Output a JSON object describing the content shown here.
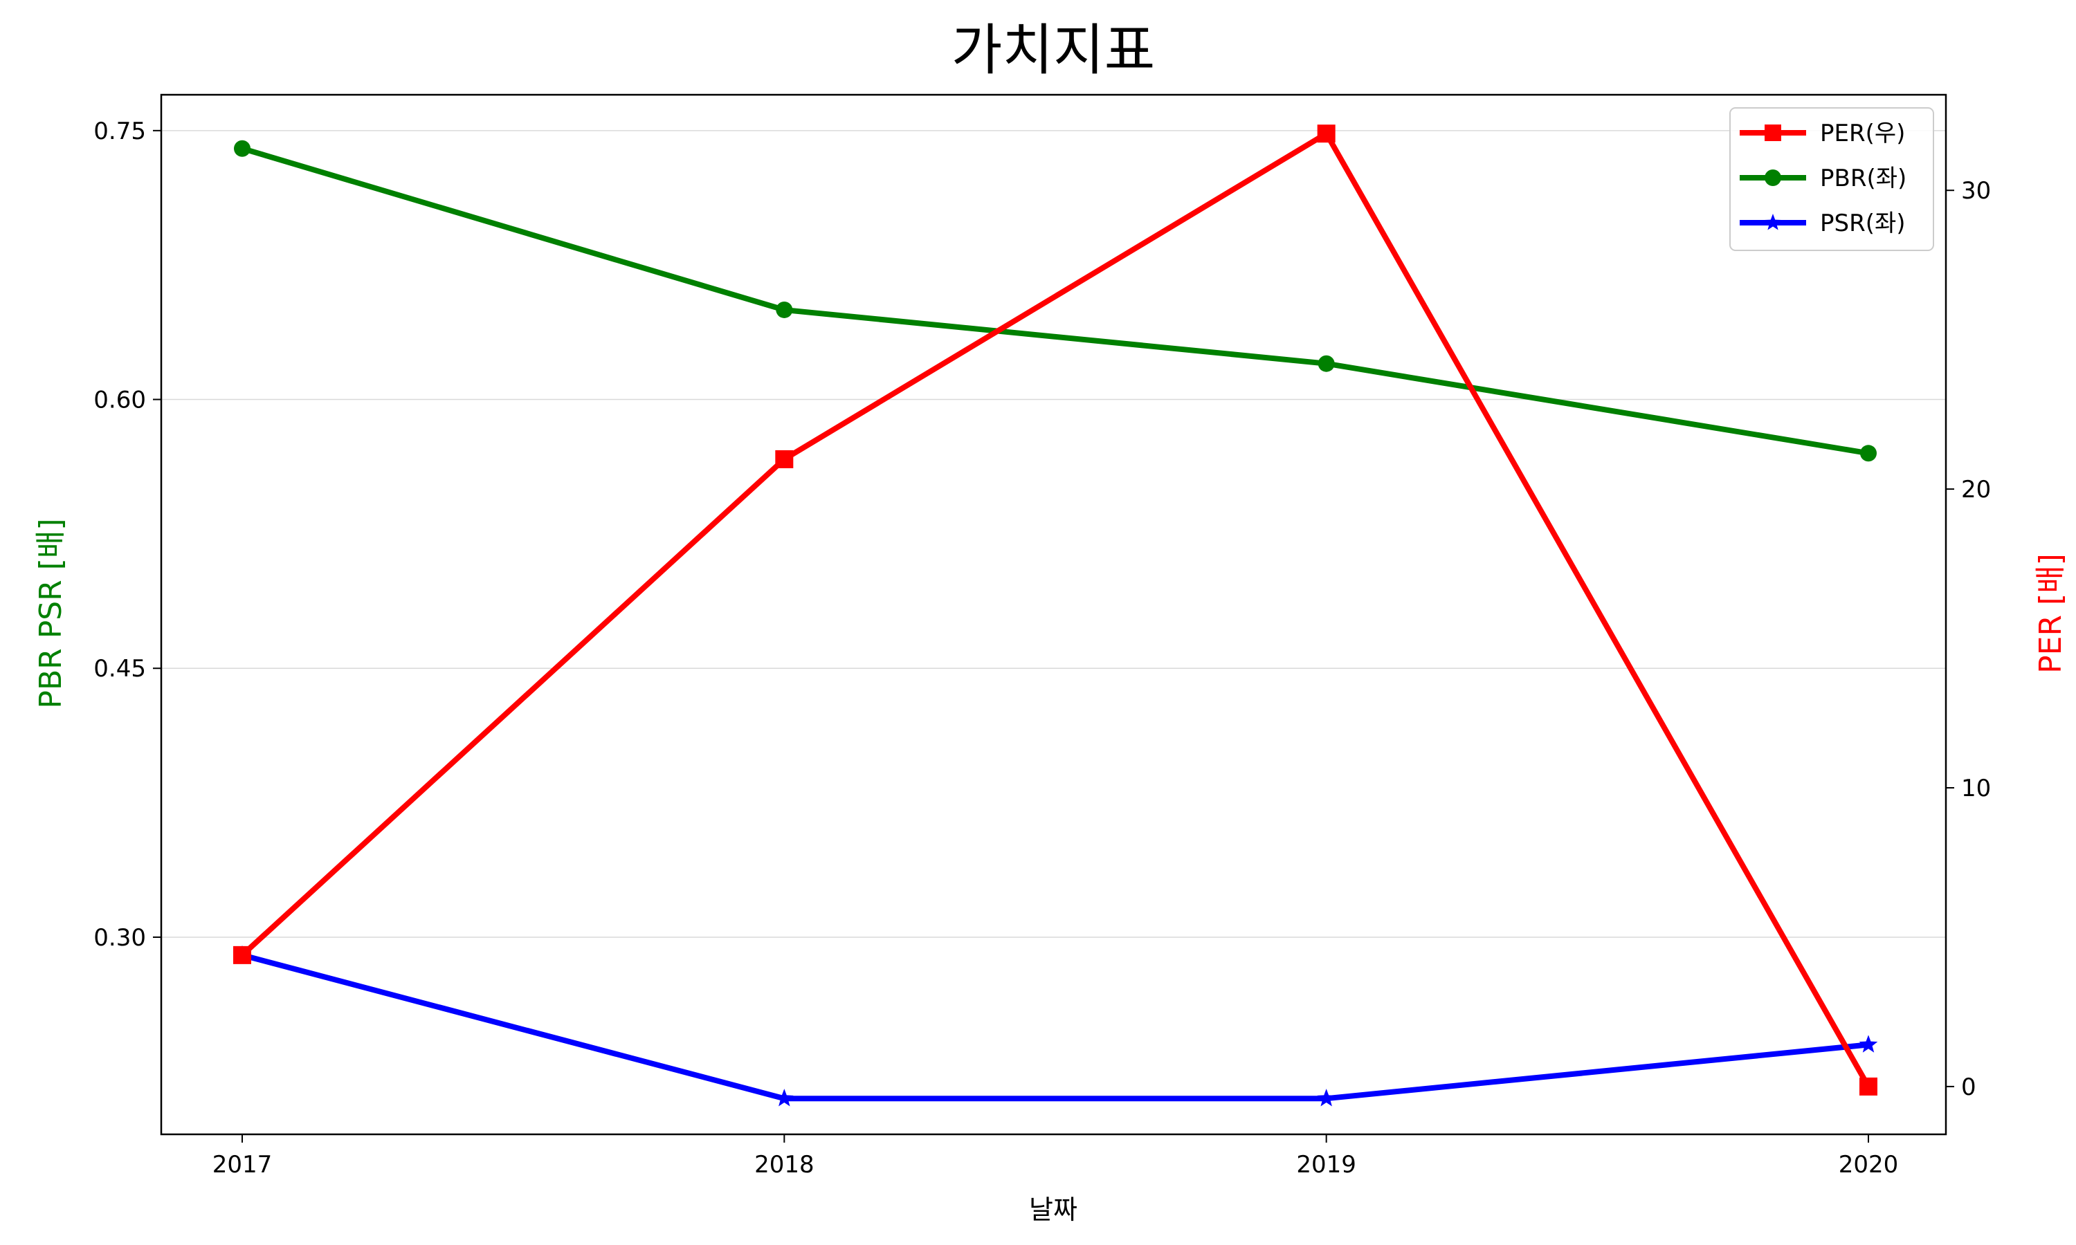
{
  "chart_data": {
    "type": "line",
    "title": "가치지표",
    "xlabel": "날짜",
    "ylabel_left": "PBR PSR [배]",
    "ylabel_right": "PER [배]",
    "categories": [
      "2017",
      "2018",
      "2019",
      "2020"
    ],
    "left_axis": {
      "ylim": [
        0.19,
        0.77
      ],
      "ticks": [
        0.3,
        0.45,
        0.6,
        0.75
      ],
      "tick_labels": [
        "0.30",
        "0.45",
        "0.60",
        "0.75"
      ],
      "grid": true
    },
    "right_axis": {
      "ylim": [
        -1.6,
        33.2
      ],
      "ticks": [
        0,
        10,
        20,
        30
      ],
      "tick_labels": [
        "0",
        "10",
        "20",
        "30"
      ]
    },
    "series": [
      {
        "name": "PER(우)",
        "axis": "right",
        "marker": "square",
        "color": "#ff0000",
        "values": [
          4.4,
          21.0,
          31.9,
          0.0
        ]
      },
      {
        "name": "PBR(좌)",
        "axis": "left",
        "marker": "circle",
        "color": "#008000",
        "values": [
          0.74,
          0.65,
          0.62,
          0.57
        ]
      },
      {
        "name": "PSR(좌)",
        "axis": "left",
        "marker": "star",
        "color": "#0000ff",
        "values": [
          0.29,
          0.21,
          0.21,
          0.24
        ]
      }
    ],
    "legend_position": "top-right",
    "ylabel_left_color": "#008000",
    "ylabel_right_color": "#ff0000"
  }
}
